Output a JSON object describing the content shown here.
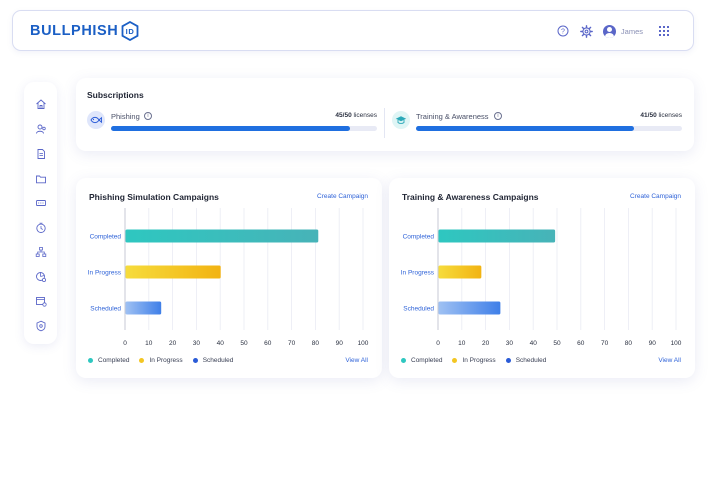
{
  "header": {
    "logo_text": "BULLPHISH",
    "logo_badge": "ID",
    "help_icon": "help-circle-icon",
    "settings_icon": "gear-icon",
    "user_name": "James",
    "apps_icon": "grid-apps-icon",
    "brand_color": "#1b5fc5"
  },
  "sidebar": {
    "items": [
      {
        "icon": "home-icon"
      },
      {
        "icon": "users-icon"
      },
      {
        "icon": "document-icon"
      },
      {
        "icon": "folder-icon"
      },
      {
        "icon": "email-template-icon"
      },
      {
        "icon": "clock-icon"
      },
      {
        "icon": "org-chart-icon"
      },
      {
        "icon": "report-gear-icon"
      },
      {
        "icon": "calendar-settings-icon"
      },
      {
        "icon": "shield-settings-icon"
      }
    ]
  },
  "subscriptions": {
    "title": "Subscriptions",
    "items": [
      {
        "name": "Phishing",
        "info": "i",
        "used": "45/50",
        "suffix": " licenses",
        "progress": 0.9,
        "icon": "fish-hook-icon"
      },
      {
        "name": "Training & Awareness",
        "info": "i",
        "used": "41/50",
        "suffix": " licenses",
        "progress": 0.82,
        "icon": "graduation-cap-icon"
      }
    ]
  },
  "campaigns": [
    {
      "title": "Phishing Simulation Campaigns",
      "create_label": "Create Campaign",
      "view_all_label": "View All",
      "legend": [
        {
          "label": "Completed",
          "color": "#2ec7c0"
        },
        {
          "label": "In Progress",
          "color": "#f3c623"
        },
        {
          "label": "Scheduled",
          "color": "#2a5bd7"
        }
      ]
    },
    {
      "title": "Training & Awareness Campaigns",
      "create_label": "Create Campaign",
      "view_all_label": "View All",
      "legend": [
        {
          "label": "Completed",
          "color": "#2ec7c0"
        },
        {
          "label": "In Progress",
          "color": "#f3c623"
        },
        {
          "label": "Scheduled",
          "color": "#2a5bd7"
        }
      ]
    }
  ],
  "chart_data": [
    {
      "type": "bar",
      "orientation": "horizontal",
      "title": "Phishing Simulation Campaigns",
      "categories": [
        "Completed",
        "In Progress",
        "Scheduled"
      ],
      "values": [
        81,
        40,
        15
      ],
      "colors": [
        "#2ec7c0",
        "#f3c623",
        "#3f7fe8"
      ],
      "xlim": [
        0,
        100
      ],
      "xticks": [
        0,
        10,
        20,
        30,
        40,
        50,
        60,
        70,
        80,
        90,
        100
      ],
      "grid": true,
      "legend_position": "bottom-left"
    },
    {
      "type": "bar",
      "orientation": "horizontal",
      "title": "Training & Awareness Campaigns",
      "categories": [
        "Completed",
        "In Progress",
        "Scheduled"
      ],
      "values": [
        49,
        18,
        26
      ],
      "colors": [
        "#2ec7c0",
        "#f3c623",
        "#3f7fe8"
      ],
      "xlim": [
        0,
        100
      ],
      "xticks": [
        0,
        10,
        20,
        30,
        40,
        50,
        60,
        70,
        80,
        90,
        100
      ],
      "grid": true,
      "legend_position": "bottom-left"
    }
  ]
}
